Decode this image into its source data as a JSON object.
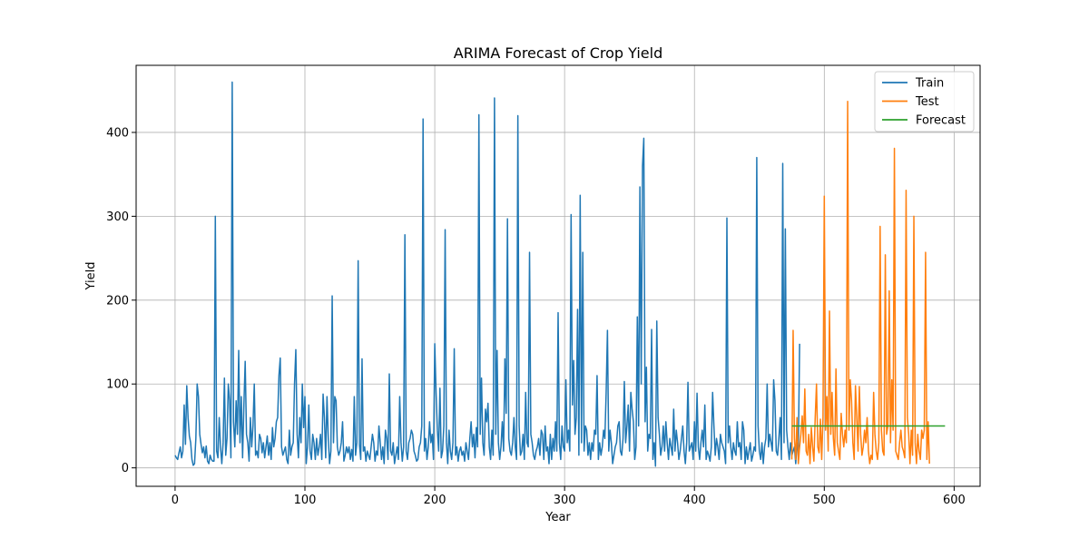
{
  "chart_data": {
    "type": "line",
    "title": "ARIMA Forecast of Crop Yield",
    "xlabel": "Year",
    "ylabel": "Yield",
    "xlim": [
      -30,
      620
    ],
    "ylim": [
      -22,
      480
    ],
    "xticks": [
      0,
      100,
      200,
      300,
      400,
      500,
      600
    ],
    "yticks": [
      0,
      100,
      200,
      300,
      400
    ],
    "grid": true,
    "legend_position": "top-right",
    "series": [
      {
        "name": "Train",
        "color": "#1f77b4",
        "x_start": 0,
        "values": [
          15,
          12,
          10,
          18,
          25,
          12,
          20,
          75,
          28,
          98,
          60,
          38,
          30,
          10,
          3,
          5,
          35,
          100,
          85,
          40,
          28,
          18,
          25,
          12,
          26,
          8,
          5,
          15,
          10,
          8,
          8,
          300,
          20,
          12,
          60,
          25,
          5,
          30,
          107,
          15,
          35,
          100,
          80,
          12,
          460,
          55,
          25,
          80,
          40,
          140,
          30,
          85,
          12,
          75,
          127,
          40,
          30,
          8,
          60,
          25,
          50,
          100,
          15,
          20,
          12,
          40,
          35,
          18,
          30,
          12,
          25,
          38,
          15,
          30,
          10,
          48,
          25,
          35,
          55,
          60,
          110,
          131,
          25,
          15,
          20,
          25,
          10,
          5,
          45,
          15,
          25,
          30,
          100,
          141,
          40,
          12,
          60,
          30,
          100,
          48,
          85,
          5,
          25,
          75,
          20,
          10,
          40,
          30,
          10,
          35,
          15,
          25,
          40,
          10,
          88,
          60,
          12,
          85,
          35,
          5,
          20,
          205,
          30,
          85,
          80,
          25,
          15,
          20,
          30,
          55,
          8,
          15,
          25,
          18,
          25,
          10,
          22,
          8,
          85,
          15,
          30,
          247,
          28,
          10,
          130,
          20,
          25,
          8,
          20,
          15,
          10,
          25,
          40,
          30,
          8,
          20,
          15,
          50,
          30,
          10,
          25,
          5,
          45,
          35,
          10,
          112,
          20,
          15,
          30,
          5,
          15,
          25,
          10,
          85,
          30,
          8,
          25,
          278,
          20,
          10,
          30,
          35,
          45,
          40,
          20,
          15,
          8,
          10,
          25,
          30,
          50,
          416,
          20,
          35,
          10,
          25,
          55,
          30,
          40,
          10,
          148,
          90,
          45,
          20,
          95,
          12,
          20,
          50,
          284,
          30,
          5,
          45,
          20,
          10,
          30,
          142,
          15,
          25,
          8,
          20,
          25,
          15,
          20,
          8,
          30,
          20,
          10,
          35,
          55,
          25,
          40,
          12,
          48,
          25,
          421,
          40,
          107,
          30,
          15,
          70,
          55,
          77,
          25,
          10,
          45,
          15,
          441,
          40,
          140,
          30,
          10,
          25,
          55,
          20,
          130,
          65,
          297,
          35,
          20,
          15,
          30,
          60,
          25,
          10,
          420,
          50,
          15,
          20,
          40,
          10,
          90,
          30,
          25,
          257,
          40,
          30,
          15,
          10,
          20,
          25,
          35,
          15,
          45,
          40,
          10,
          50,
          20,
          25,
          5,
          40,
          10,
          35,
          20,
          55,
          20,
          185,
          30,
          10,
          50,
          25,
          20,
          105,
          30,
          45,
          20,
          302,
          75,
          128,
          40,
          60,
          189,
          15,
          325,
          30,
          257,
          20,
          50,
          45,
          15,
          30,
          10,
          30,
          20,
          45,
          40,
          110,
          10,
          30,
          15,
          25,
          45,
          35,
          90,
          164,
          20,
          45,
          30,
          5,
          15,
          25,
          30,
          50,
          55,
          20,
          15,
          35,
          103,
          30,
          50,
          75,
          20,
          90,
          70,
          55,
          10,
          25,
          180,
          50,
          335,
          100,
          360,
          393,
          55,
          120,
          20,
          40,
          35,
          165,
          10,
          30,
          2,
          175,
          60,
          40,
          15,
          25,
          50,
          20,
          55,
          30,
          10,
          35,
          25,
          15,
          70,
          20,
          45,
          30,
          10,
          20,
          35,
          50,
          20,
          5,
          30,
          102,
          20,
          25,
          30,
          10,
          55,
          20,
          89,
          25,
          10,
          30,
          45,
          25,
          75,
          10,
          20,
          15,
          8,
          25,
          90,
          50,
          15,
          35,
          25,
          10,
          40,
          30,
          25,
          20,
          5,
          298,
          30,
          50,
          25,
          10,
          30,
          20,
          15,
          55,
          25,
          30,
          10,
          55,
          45,
          5,
          25,
          10,
          20,
          30,
          8,
          15,
          25,
          20,
          370,
          50,
          20,
          10,
          30,
          5,
          25,
          35,
          100,
          25,
          40,
          30,
          20,
          105,
          80,
          20,
          15,
          35,
          60,
          10,
          363,
          30,
          285,
          45,
          25,
          10,
          30,
          15,
          20,
          25,
          5,
          30,
          20,
          148
        ]
      },
      {
        "name": "Test",
        "color": "#ff7f0e",
        "x_start": 475,
        "values": [
          10,
          164,
          35,
          10,
          60,
          5,
          25,
          40,
          62,
          30,
          94,
          20,
          15,
          40,
          5,
          48,
          25,
          8,
          60,
          100,
          25,
          18,
          58,
          10,
          60,
          324,
          45,
          85,
          20,
          187,
          40,
          90,
          35,
          15,
          118,
          30,
          20,
          10,
          65,
          40,
          25,
          45,
          30,
          437,
          45,
          105,
          80,
          30,
          10,
          98,
          60,
          20,
          97,
          40,
          15,
          25,
          45,
          30,
          60,
          20,
          5,
          15,
          10,
          90,
          40,
          20,
          10,
          30,
          288,
          45,
          20,
          15,
          254,
          40,
          50,
          211,
          30,
          105,
          45,
          381,
          20,
          15,
          10,
          30,
          45,
          25,
          20,
          12,
          331,
          60,
          40,
          5,
          45,
          15,
          300,
          30,
          5,
          40,
          20,
          10,
          45,
          35,
          45,
          257,
          10,
          55,
          5
        ]
      },
      {
        "name": "Forecast",
        "color": "#2ca02c",
        "x": [
          475,
          593
        ],
        "values": [
          50,
          50
        ]
      }
    ]
  }
}
